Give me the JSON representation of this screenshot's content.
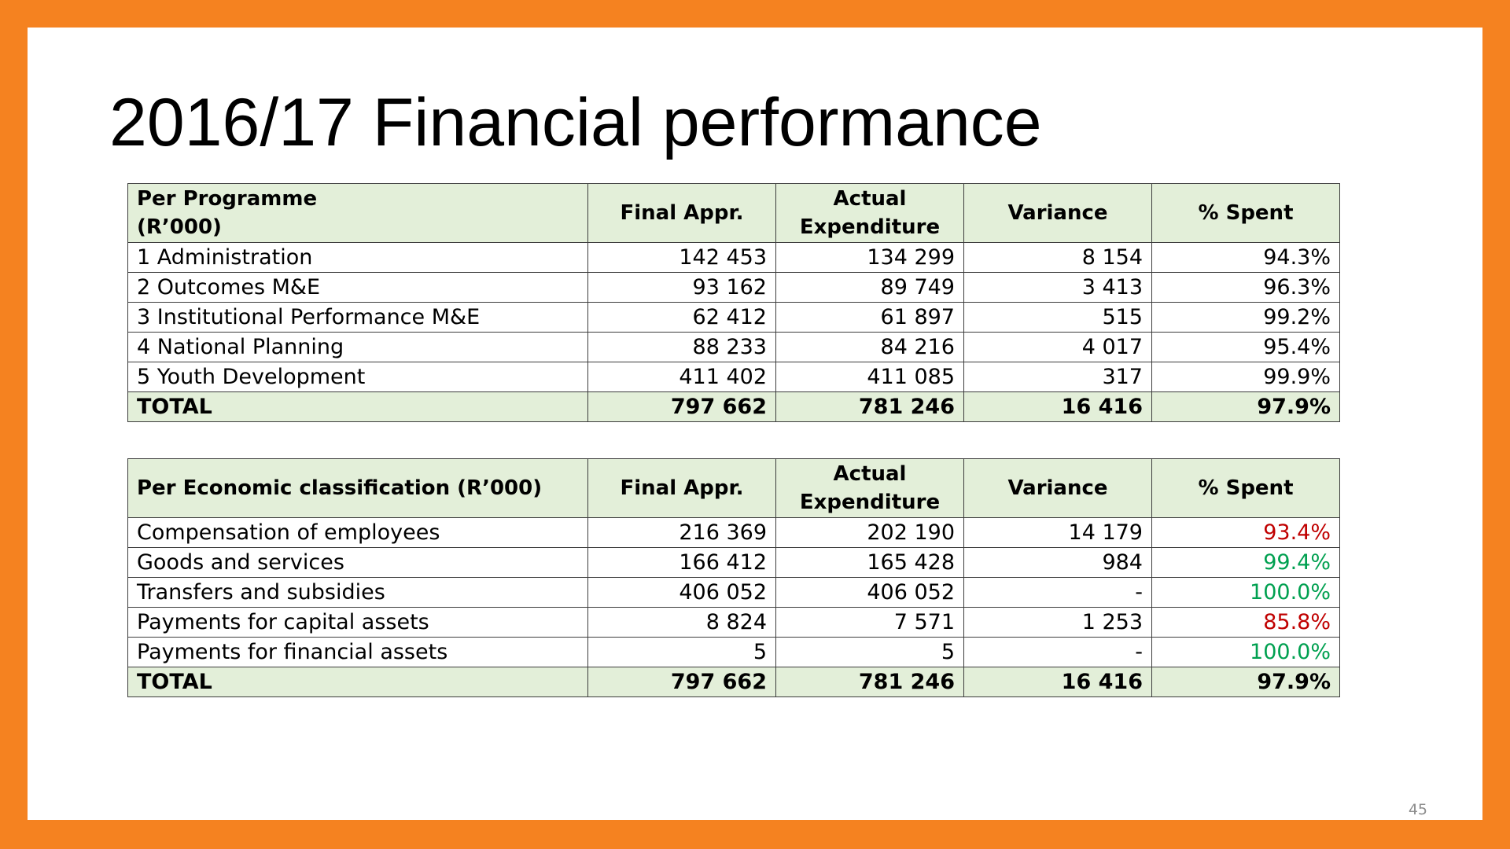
{
  "title": "2016/17 Financial performance",
  "page_number": "45",
  "colors": {
    "frame": "#F58220",
    "header_fill": "#E3EFD9",
    "under_target": "#C00000",
    "on_target": "#00A050"
  },
  "programme_table": {
    "headers": {
      "label_line1": "Per Programme",
      "label_line2": "(R’000)",
      "final_appr": "Final Appr.",
      "actual_line1": "Actual",
      "actual_line2": "Expenditure",
      "variance": "Variance",
      "spent": "% Spent"
    },
    "rows": [
      {
        "label": "1 Administration",
        "final_appr": "142 453",
        "actual": "134 299",
        "variance": "8 154",
        "spent": "94.3%"
      },
      {
        "label": "2 Outcomes M&E",
        "final_appr": "93 162",
        "actual": "89 749",
        "variance": "3 413",
        "spent": "96.3%"
      },
      {
        "label": "3 Institutional Performance M&E",
        "final_appr": "62 412",
        "actual": "61 897",
        "variance": "515",
        "spent": "99.2%"
      },
      {
        "label": "4 National Planning",
        "final_appr": "88 233",
        "actual": "84 216",
        "variance": "4 017",
        "spent": "95.4%"
      },
      {
        "label": "5 Youth Development",
        "final_appr": "411 402",
        "actual": "411 085",
        "variance": "317",
        "spent": "99.9%"
      }
    ],
    "total": {
      "label": "TOTAL",
      "final_appr": "797 662",
      "actual": "781 246",
      "variance": "16 416",
      "spent": "97.9%"
    }
  },
  "economic_table": {
    "headers": {
      "label": "Per Economic classification (R’000)",
      "final_appr": "Final Appr.",
      "actual_line1": "Actual",
      "actual_line2": "Expenditure",
      "variance": "Variance",
      "spent": "% Spent"
    },
    "rows": [
      {
        "label": "Compensation of employees",
        "final_appr": "216 369",
        "actual": "202 190",
        "variance": "14 179",
        "spent": "93.4%",
        "spent_color": "red"
      },
      {
        "label": "Goods and services",
        "final_appr": "166 412",
        "actual": "165 428",
        "variance": "984",
        "spent": "99.4%",
        "spent_color": "green"
      },
      {
        "label": "Transfers and subsidies",
        "final_appr": "406 052",
        "actual": "406 052",
        "variance": "-",
        "spent": "100.0%",
        "spent_color": "green"
      },
      {
        "label": "Payments for capital assets",
        "final_appr": "8 824",
        "actual": "7 571",
        "variance": "1 253",
        "spent": "85.8%",
        "spent_color": "red"
      },
      {
        "label": "Payments for financial assets",
        "final_appr": "5",
        "actual": "5",
        "variance": "-",
        "spent": "100.0%",
        "spent_color": "green"
      }
    ],
    "total": {
      "label": "TOTAL",
      "final_appr": "797 662",
      "actual": "781 246",
      "variance": "16 416",
      "spent": "97.9%"
    }
  }
}
